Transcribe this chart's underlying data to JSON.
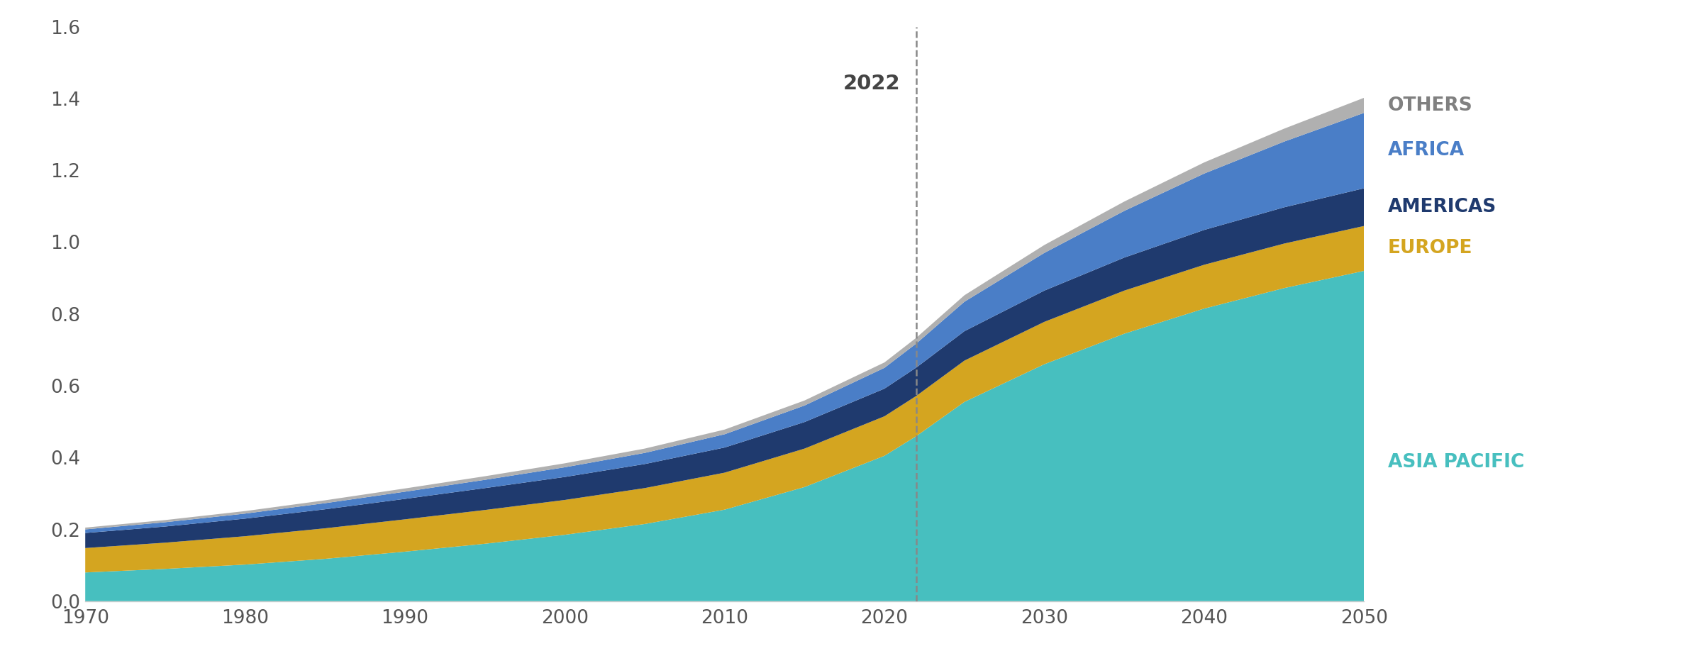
{
  "years": [
    1970,
    1975,
    1980,
    1985,
    1990,
    1995,
    2000,
    2005,
    2010,
    2015,
    2020,
    2022,
    2025,
    2030,
    2035,
    2040,
    2045,
    2050
  ],
  "asia_pacific": [
    0.08,
    0.09,
    0.102,
    0.118,
    0.138,
    0.16,
    0.185,
    0.215,
    0.255,
    0.318,
    0.405,
    0.46,
    0.555,
    0.66,
    0.745,
    0.815,
    0.872,
    0.92
  ],
  "europe": [
    0.068,
    0.073,
    0.079,
    0.085,
    0.09,
    0.094,
    0.097,
    0.1,
    0.103,
    0.107,
    0.11,
    0.112,
    0.115,
    0.118,
    0.12,
    0.122,
    0.124,
    0.125
  ],
  "americas": [
    0.042,
    0.045,
    0.049,
    0.053,
    0.057,
    0.061,
    0.064,
    0.067,
    0.07,
    0.074,
    0.077,
    0.079,
    0.082,
    0.087,
    0.092,
    0.097,
    0.101,
    0.105
  ],
  "africa": [
    0.01,
    0.012,
    0.014,
    0.017,
    0.02,
    0.023,
    0.027,
    0.031,
    0.037,
    0.046,
    0.058,
    0.067,
    0.082,
    0.105,
    0.13,
    0.157,
    0.183,
    0.21
  ],
  "others": [
    0.005,
    0.006,
    0.007,
    0.008,
    0.009,
    0.01,
    0.011,
    0.012,
    0.013,
    0.014,
    0.015,
    0.016,
    0.018,
    0.022,
    0.026,
    0.031,
    0.036,
    0.042
  ],
  "colors": {
    "asia_pacific": "#47BFBF",
    "europe": "#D4A520",
    "americas": "#1F3A6E",
    "africa": "#4A7EC7",
    "others": "#B0B0B0"
  },
  "labels": {
    "asia_pacific": "ASIA PACIFIC",
    "europe": "EUROPE",
    "americas": "AMERICAS",
    "africa": "AFRICA",
    "others": "OTHERS"
  },
  "label_colors": {
    "asia_pacific": "#47BFBF",
    "europe": "#D4A520",
    "americas": "#1F3A6E",
    "africa": "#4A7EC7",
    "others": "#808080"
  },
  "annotation_year": 2022,
  "annotation_label": "2022",
  "ylim": [
    0,
    1.6
  ],
  "yticks": [
    0.0,
    0.2,
    0.4,
    0.6,
    0.8,
    1.0,
    1.2,
    1.4,
    1.6
  ],
  "xticks": [
    1970,
    1980,
    1990,
    2000,
    2010,
    2020,
    2030,
    2040,
    2050
  ],
  "background_color": "#FFFFFF",
  "label_fontsize": 19,
  "tick_fontsize": 19
}
